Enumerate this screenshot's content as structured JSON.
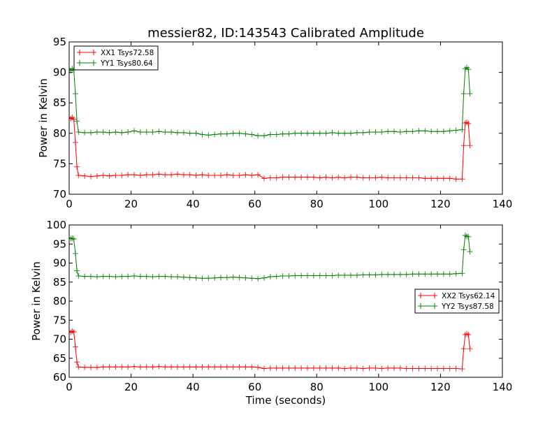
{
  "chart_data": [
    {
      "type": "line",
      "title": "messier82, ID:143543 Calibrated Amplitude",
      "xlabel": "",
      "ylabel": "Power in Kelvin",
      "xlim": [
        0,
        140
      ],
      "ylim": [
        70,
        95
      ],
      "xticks": [
        "0",
        "20",
        "40",
        "60",
        "80",
        "100",
        "120",
        "140"
      ],
      "yticks": [
        "70",
        "75",
        "80",
        "85",
        "90",
        "95"
      ],
      "legend_position": "top-left",
      "x": [
        0,
        0.5,
        1,
        1.5,
        2,
        2.5,
        3,
        5,
        7,
        9,
        11,
        13,
        15,
        17,
        19,
        21,
        23,
        25,
        27,
        29,
        31,
        33,
        35,
        37,
        39,
        41,
        43,
        45,
        47,
        49,
        51,
        53,
        55,
        57,
        59,
        61,
        63,
        65,
        67,
        69,
        71,
        73,
        75,
        77,
        79,
        81,
        83,
        85,
        87,
        89,
        91,
        93,
        95,
        97,
        99,
        101,
        103,
        105,
        107,
        109,
        111,
        113,
        115,
        117,
        119,
        121,
        123,
        125,
        127,
        127.5,
        128,
        128.5,
        129,
        129.5
      ],
      "series": [
        {
          "name": "XX1 Tsys72.58",
          "color": "#ff0000",
          "values": [
            82.5,
            82.4,
            82.6,
            82.3,
            78.5,
            74.5,
            73.1,
            73.0,
            72.9,
            73.0,
            73.1,
            73.0,
            73.1,
            73.1,
            73.2,
            73.2,
            73.1,
            73.2,
            73.2,
            73.3,
            73.2,
            73.2,
            73.3,
            73.2,
            73.2,
            73.1,
            73.2,
            73.1,
            73.1,
            73.1,
            73.2,
            73.1,
            73.1,
            73.2,
            73.1,
            73.2,
            72.6,
            72.7,
            72.7,
            72.8,
            72.8,
            72.8,
            72.8,
            72.8,
            72.8,
            72.7,
            72.8,
            72.7,
            72.8,
            72.7,
            72.8,
            72.8,
            72.7,
            72.7,
            72.7,
            72.8,
            72.7,
            72.7,
            72.7,
            72.7,
            72.7,
            72.7,
            72.6,
            72.6,
            72.6,
            72.6,
            72.6,
            72.5,
            72.5,
            78.0,
            81.7,
            81.8,
            81.6,
            78.0
          ]
        },
        {
          "name": "YY1 Tsys80.64",
          "color": "#008000",
          "values": [
            90.5,
            90.3,
            90.6,
            90.4,
            86.5,
            82.0,
            80.2,
            80.1,
            80.1,
            80.2,
            80.2,
            80.1,
            80.2,
            80.1,
            80.2,
            80.4,
            80.2,
            80.2,
            80.2,
            80.3,
            80.2,
            80.2,
            80.1,
            80.1,
            80.0,
            80.0,
            79.8,
            79.7,
            79.8,
            79.9,
            79.9,
            80.0,
            80.0,
            79.9,
            79.8,
            79.6,
            79.6,
            79.8,
            79.8,
            79.9,
            79.9,
            80.0,
            80.0,
            80.0,
            80.0,
            80.0,
            80.0,
            80.1,
            80.0,
            80.0,
            80.0,
            80.1,
            80.1,
            80.2,
            80.2,
            80.2,
            80.3,
            80.3,
            80.2,
            80.3,
            80.3,
            80.4,
            80.4,
            80.3,
            80.3,
            80.3,
            80.4,
            80.5,
            80.6,
            86.5,
            90.6,
            90.8,
            90.5,
            86.5
          ]
        }
      ]
    },
    {
      "type": "line",
      "title": "",
      "xlabel": "Time (seconds)",
      "ylabel": "Power in Kelvin",
      "xlim": [
        0,
        140
      ],
      "ylim": [
        60,
        100
      ],
      "xticks": [
        "0",
        "20",
        "40",
        "60",
        "80",
        "100",
        "120",
        "140"
      ],
      "yticks": [
        "60",
        "65",
        "70",
        "75",
        "80",
        "85",
        "90",
        "95",
        "100"
      ],
      "legend_position": "center-right",
      "x": [
        0,
        0.5,
        1,
        1.5,
        2,
        2.5,
        3,
        5,
        7,
        9,
        11,
        13,
        15,
        17,
        19,
        21,
        23,
        25,
        27,
        29,
        31,
        33,
        35,
        37,
        39,
        41,
        43,
        45,
        47,
        49,
        51,
        53,
        55,
        57,
        59,
        61,
        63,
        65,
        67,
        69,
        71,
        73,
        75,
        77,
        79,
        81,
        83,
        85,
        87,
        89,
        91,
        93,
        95,
        97,
        99,
        101,
        103,
        105,
        107,
        109,
        111,
        113,
        115,
        117,
        119,
        121,
        123,
        125,
        127,
        127.5,
        128,
        128.5,
        129,
        129.5
      ],
      "series": [
        {
          "name": "XX2 Tsys62.14",
          "color": "#ff0000",
          "values": [
            72.0,
            71.8,
            72.1,
            71.9,
            68.0,
            64.0,
            62.7,
            62.6,
            62.6,
            62.6,
            62.7,
            62.7,
            62.7,
            62.7,
            62.7,
            62.8,
            62.7,
            62.7,
            62.7,
            62.8,
            62.7,
            62.7,
            62.7,
            62.7,
            62.7,
            62.7,
            62.7,
            62.7,
            62.7,
            62.7,
            62.7,
            62.7,
            62.7,
            62.7,
            62.7,
            62.6,
            62.3,
            62.4,
            62.4,
            62.4,
            62.4,
            62.4,
            62.4,
            62.4,
            62.4,
            62.4,
            62.4,
            62.4,
            62.4,
            62.3,
            62.4,
            62.4,
            62.3,
            62.4,
            62.4,
            62.3,
            62.4,
            62.4,
            62.4,
            62.3,
            62.3,
            62.3,
            62.3,
            62.3,
            62.3,
            62.3,
            62.3,
            62.3,
            62.2,
            67.5,
            71.2,
            71.4,
            71.2,
            67.5
          ]
        },
        {
          "name": "YY2 Tsys87.58",
          "color": "#008000",
          "values": [
            96.6,
            96.4,
            96.5,
            96.3,
            92.5,
            88.0,
            86.6,
            86.5,
            86.5,
            86.4,
            86.5,
            86.5,
            86.4,
            86.5,
            86.5,
            86.6,
            86.5,
            86.5,
            86.4,
            86.5,
            86.5,
            86.4,
            86.4,
            86.3,
            86.2,
            86.1,
            86.0,
            86.0,
            86.1,
            86.2,
            86.2,
            86.3,
            86.2,
            86.1,
            86.0,
            85.9,
            86.1,
            86.4,
            86.5,
            86.6,
            86.6,
            86.7,
            86.7,
            86.7,
            86.7,
            86.7,
            86.7,
            86.7,
            86.8,
            86.8,
            86.8,
            86.8,
            86.9,
            86.9,
            86.9,
            87.0,
            87.0,
            87.0,
            87.0,
            87.0,
            87.1,
            87.1,
            87.1,
            87.1,
            87.1,
            87.1,
            87.1,
            87.2,
            87.3,
            93.5,
            97.3,
            97.0,
            96.9,
            93.0
          ]
        }
      ]
    }
  ]
}
